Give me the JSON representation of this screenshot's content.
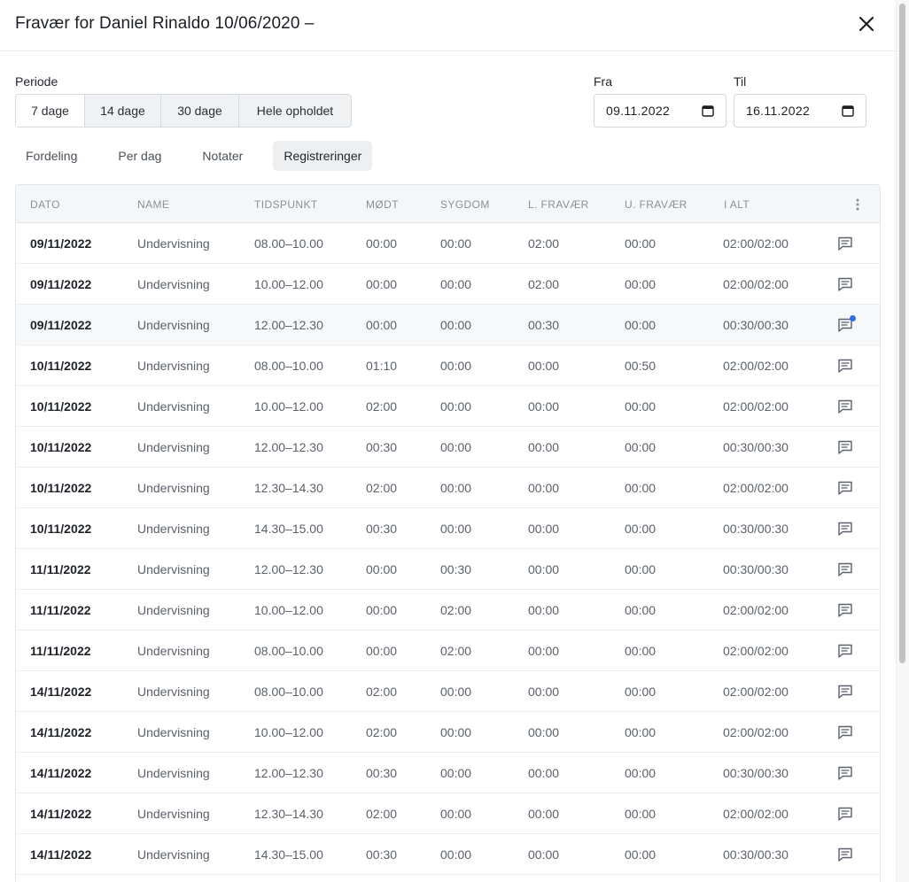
{
  "header": {
    "title": "Fravær for Daniel Rinaldo 10/06/2020 –"
  },
  "period": {
    "label": "Periode",
    "options": [
      {
        "label": "7 dage",
        "active": false
      },
      {
        "label": "14 dage",
        "active": true
      },
      {
        "label": "30 dage",
        "active": true
      },
      {
        "label": "Hele opholdet",
        "active": true
      }
    ]
  },
  "range": {
    "from_label": "Fra",
    "from_value": "09.11.2022",
    "to_label": "Til",
    "to_value": "16.11.2022"
  },
  "tabs": [
    {
      "label": "Fordeling",
      "active": false
    },
    {
      "label": "Per dag",
      "active": false
    },
    {
      "label": "Notater",
      "active": false
    },
    {
      "label": "Registreringer",
      "active": true
    }
  ],
  "table": {
    "columns": [
      "DATO",
      "NAME",
      "TIDSPUNKT",
      "MØDT",
      "SYGDOM",
      "L. FRAVÆR",
      "U. FRAVÆR",
      "I ALT"
    ],
    "rows": [
      {
        "dato": "09/11/2022",
        "name": "Undervisning",
        "tid": "08.00–10.00",
        "modt": "00:00",
        "syg": "00:00",
        "lf": "02:00",
        "uf": "00:00",
        "ialt": "02:00/02:00",
        "note": false
      },
      {
        "dato": "09/11/2022",
        "name": "Undervisning",
        "tid": "10.00–12.00",
        "modt": "00:00",
        "syg": "00:00",
        "lf": "02:00",
        "uf": "00:00",
        "ialt": "02:00/02:00",
        "note": false
      },
      {
        "dato": "09/11/2022",
        "name": "Undervisning",
        "tid": "12.00–12.30",
        "modt": "00:00",
        "syg": "00:00",
        "lf": "00:30",
        "uf": "00:00",
        "ialt": "00:30/00:30",
        "note": true
      },
      {
        "dato": "10/11/2022",
        "name": "Undervisning",
        "tid": "08.00–10.00",
        "modt": "01:10",
        "syg": "00:00",
        "lf": "00:00",
        "uf": "00:50",
        "ialt": "02:00/02:00",
        "note": false
      },
      {
        "dato": "10/11/2022",
        "name": "Undervisning",
        "tid": "10.00–12.00",
        "modt": "02:00",
        "syg": "00:00",
        "lf": "00:00",
        "uf": "00:00",
        "ialt": "02:00/02:00",
        "note": false
      },
      {
        "dato": "10/11/2022",
        "name": "Undervisning",
        "tid": "12.00–12.30",
        "modt": "00:30",
        "syg": "00:00",
        "lf": "00:00",
        "uf": "00:00",
        "ialt": "00:30/00:30",
        "note": false
      },
      {
        "dato": "10/11/2022",
        "name": "Undervisning",
        "tid": "12.30–14.30",
        "modt": "02:00",
        "syg": "00:00",
        "lf": "00:00",
        "uf": "00:00",
        "ialt": "02:00/02:00",
        "note": false
      },
      {
        "dato": "10/11/2022",
        "name": "Undervisning",
        "tid": "14.30–15.00",
        "modt": "00:30",
        "syg": "00:00",
        "lf": "00:00",
        "uf": "00:00",
        "ialt": "00:30/00:30",
        "note": false
      },
      {
        "dato": "11/11/2022",
        "name": "Undervisning",
        "tid": "12.00–12.30",
        "modt": "00:00",
        "syg": "00:30",
        "lf": "00:00",
        "uf": "00:00",
        "ialt": "00:30/00:30",
        "note": false
      },
      {
        "dato": "11/11/2022",
        "name": "Undervisning",
        "tid": "10.00–12.00",
        "modt": "00:00",
        "syg": "02:00",
        "lf": "00:00",
        "uf": "00:00",
        "ialt": "02:00/02:00",
        "note": false
      },
      {
        "dato": "11/11/2022",
        "name": "Undervisning",
        "tid": "08.00–10.00",
        "modt": "00:00",
        "syg": "02:00",
        "lf": "00:00",
        "uf": "00:00",
        "ialt": "02:00/02:00",
        "note": false
      },
      {
        "dato": "14/11/2022",
        "name": "Undervisning",
        "tid": "08.00–10.00",
        "modt": "02:00",
        "syg": "00:00",
        "lf": "00:00",
        "uf": "00:00",
        "ialt": "02:00/02:00",
        "note": false
      },
      {
        "dato": "14/11/2022",
        "name": "Undervisning",
        "tid": "10.00–12.00",
        "modt": "02:00",
        "syg": "00:00",
        "lf": "00:00",
        "uf": "00:00",
        "ialt": "02:00/02:00",
        "note": false
      },
      {
        "dato": "14/11/2022",
        "name": "Undervisning",
        "tid": "12.00–12.30",
        "modt": "00:30",
        "syg": "00:00",
        "lf": "00:00",
        "uf": "00:00",
        "ialt": "00:30/00:30",
        "note": false
      },
      {
        "dato": "14/11/2022",
        "name": "Undervisning",
        "tid": "12.30–14.30",
        "modt": "02:00",
        "syg": "00:00",
        "lf": "00:00",
        "uf": "00:00",
        "ialt": "02:00/02:00",
        "note": false
      },
      {
        "dato": "14/11/2022",
        "name": "Undervisning",
        "tid": "14.30–15.00",
        "modt": "00:30",
        "syg": "00:00",
        "lf": "00:00",
        "uf": "00:00",
        "ialt": "00:30/00:30",
        "note": false
      }
    ]
  },
  "colors": {
    "accent_dot": "#2f6fe4",
    "header_bg": "#f5f6f7",
    "active_bg": "#f0f1f3"
  }
}
